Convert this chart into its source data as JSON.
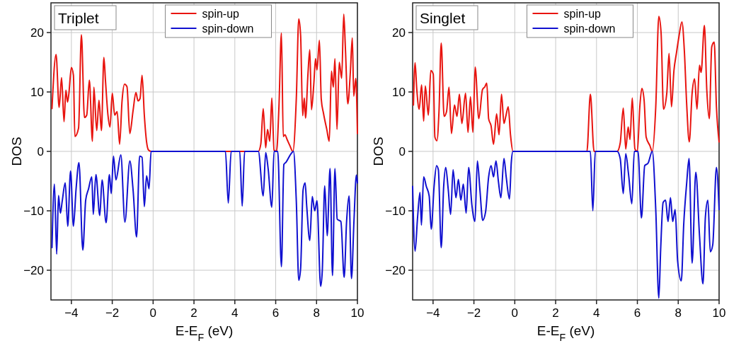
{
  "chart_data": [
    {
      "type": "line",
      "title": "Triplet",
      "xlabel": "E-E$_{F}$ (eV)",
      "ylabel": "DOS",
      "xlim": [
        -5,
        10
      ],
      "ylim": [
        -25,
        25
      ],
      "xticks": [
        -4,
        -2,
        0,
        2,
        4,
        6,
        8,
        10
      ],
      "yticks": [
        -20,
        -10,
        0,
        10,
        20
      ],
      "grid": true,
      "legend": "top",
      "series": [
        {
          "name": "spin-up",
          "color": "#e8140f",
          "x": [
            -4.95,
            -4.75,
            -4.6,
            -4.48,
            -4.36,
            -4.27,
            -4.19,
            -4.13,
            -4.0,
            -3.9,
            -3.83,
            -3.65,
            -3.51,
            -3.36,
            -3.25,
            -3.12,
            -2.97,
            -2.9,
            -2.76,
            -2.65,
            -2.53,
            -2.41,
            -2.33,
            -2.21,
            -2.11,
            -2.0,
            -1.88,
            -1.76,
            -1.64,
            -1.52,
            -1.4,
            -1.28,
            -1.14,
            -0.98,
            -0.84,
            -0.74,
            -0.64,
            -0.54,
            -0.43,
            -0.32,
            -0.22,
            -0.1,
            5.15,
            5.27,
            5.39,
            5.51,
            5.6,
            5.71,
            5.81,
            5.92,
            6.04,
            6.16,
            6.28,
            6.37,
            6.45,
            6.57,
            6.69,
            6.84,
            7.01,
            7.13,
            7.22,
            7.32,
            7.4,
            7.46,
            7.58,
            7.67,
            7.75,
            7.87,
            7.95,
            8.02,
            8.14,
            8.23,
            8.34,
            8.5,
            8.62,
            8.73,
            8.82,
            8.9,
            9.0,
            9.11,
            9.23,
            9.33,
            9.41,
            9.53,
            9.65,
            9.75,
            9.82,
            9.92,
            10
          ],
          "values": [
            7.2,
            16.3,
            7.4,
            12.4,
            5.0,
            10.3,
            8.3,
            9.5,
            14.1,
            12.8,
            2.5,
            3.9,
            19.6,
            5.7,
            6.1,
            12.0,
            1.7,
            10.8,
            3.5,
            8.6,
            3.5,
            15.8,
            11.8,
            6.1,
            4.1,
            9.8,
            6.1,
            6.7,
            1.2,
            8.5,
            11.3,
            10.9,
            3.0,
            6.9,
            9.9,
            8.5,
            8.9,
            12.8,
            6.1,
            1.6,
            0.2,
            0,
            0,
            1.2,
            7.2,
            0.6,
            3.7,
            1.7,
            9.0,
            0.2,
            0,
            7.6,
            19.9,
            2.5,
            2.8,
            1.9,
            1.0,
            0,
            9.0,
            22.3,
            19.5,
            6.0,
            9.0,
            5.6,
            13.1,
            17.1,
            7.0,
            11.6,
            15.6,
            13.7,
            18.7,
            8.8,
            6.4,
            3.7,
            1.7,
            13.5,
            10.8,
            15.6,
            3.7,
            15.0,
            12.3,
            23.1,
            17.5,
            8.0,
            13.1,
            19.1,
            9.3,
            12.3,
            3.0
          ]
        },
        {
          "name": "spin-down",
          "color": "#1010d0",
          "x": [
            -4.95,
            -4.83,
            -4.72,
            -4.63,
            -4.54,
            -4.45,
            -4.3,
            -4.18,
            -4.04,
            -3.9,
            -3.77,
            -3.63,
            -3.44,
            -3.3,
            -3.16,
            -3.0,
            -2.93,
            -2.8,
            -2.61,
            -2.5,
            -2.3,
            -2.14,
            -2.05,
            -1.94,
            -1.82,
            -1.58,
            -1.38,
            -1.14,
            -0.98,
            -0.81,
            -0.66,
            -0.54,
            -0.43,
            -0.32,
            -0.2,
            -0.1,
            3.54,
            3.68,
            3.82,
            4.24,
            4.36,
            4.48,
            5.15,
            5.39,
            5.51,
            5.63,
            5.81,
            5.92,
            6.1,
            6.28,
            6.4,
            6.51,
            6.75,
            6.87,
            7.01,
            7.13,
            7.22,
            7.34,
            7.44,
            7.52,
            7.67,
            7.79,
            7.91,
            8.02,
            8.2,
            8.28,
            8.4,
            8.52,
            8.66,
            8.78,
            8.9,
            9.01,
            9.19,
            9.35,
            9.47,
            9.59,
            9.71,
            9.83,
            9.95,
            10
          ],
          "values": [
            -16.2,
            -5.5,
            -17.3,
            -7.4,
            -10.4,
            -8.4,
            -5.3,
            -12.6,
            -3.3,
            -12.6,
            -6.3,
            -1.9,
            -16.6,
            -8.2,
            -6.3,
            -4.3,
            -10.6,
            -3.9,
            -10.8,
            -4.8,
            -12.0,
            -3.9,
            -7.1,
            -0.8,
            -4.8,
            -0.6,
            -11.9,
            -1.6,
            -6.5,
            -14.4,
            -0.8,
            -1.0,
            -9.3,
            -4.1,
            -6.3,
            0,
            0,
            -8.7,
            0,
            0,
            -9.2,
            0,
            0,
            -7.5,
            -0.2,
            -2.9,
            -9.4,
            0,
            0,
            -19.4,
            -2.2,
            -1.8,
            -0.4,
            0,
            -8.5,
            -21.7,
            -19.7,
            -6.5,
            -5.3,
            -9.3,
            -15.0,
            -7.6,
            -10.0,
            -8.3,
            -22.7,
            -20.1,
            -5.8,
            -14.2,
            -2.9,
            -20.9,
            -2.9,
            -11.4,
            -11.8,
            -21.2,
            -11.8,
            -7.5,
            -21.4,
            -11.8,
            -4.0,
            -5.3
          ]
        }
      ]
    },
    {
      "type": "line",
      "title": "Singlet",
      "xlabel": "E-E$_{F}$ (eV)",
      "ylabel": "DOS",
      "xlim": [
        -5,
        10
      ],
      "ylim": [
        -25,
        25
      ],
      "xticks": [
        -4,
        -2,
        0,
        2,
        4,
        6,
        8,
        10
      ],
      "yticks": [
        -20,
        -10,
        0,
        10,
        20
      ],
      "grid": true,
      "legend": "top",
      "series": [
        {
          "name": "spin-up",
          "color": "#e8140f",
          "x": [
            -4.96,
            -4.88,
            -4.8,
            -4.68,
            -4.56,
            -4.46,
            -4.38,
            -4.23,
            -4.11,
            -3.99,
            -3.91,
            -3.81,
            -3.71,
            -3.6,
            -3.46,
            -3.34,
            -3.22,
            -3.1,
            -2.95,
            -2.83,
            -2.71,
            -2.59,
            -2.41,
            -2.29,
            -2.17,
            -2.05,
            -1.94,
            -1.76,
            -1.58,
            -1.46,
            -1.37,
            -1.28,
            -1.16,
            -1.04,
            -0.89,
            -0.77,
            -0.65,
            -0.53,
            -0.44,
            -0.32,
            -0.21,
            -0.09,
            3.53,
            3.7,
            3.88,
            5.01,
            5.16,
            5.31,
            5.43,
            5.55,
            5.64,
            5.75,
            5.88,
            6.0,
            6.12,
            6.22,
            6.33,
            6.43,
            6.61,
            6.73,
            6.9,
            7.05,
            7.16,
            7.28,
            7.44,
            7.55,
            7.67,
            7.79,
            7.91,
            8.03,
            8.18,
            8.3,
            8.41,
            8.54,
            8.68,
            8.8,
            8.92,
            9.04,
            9.12,
            9.28,
            9.4,
            9.52,
            9.64,
            9.76,
            9.87,
            10
          ],
          "values": [
            7.8,
            14.9,
            10.6,
            7.1,
            11.2,
            5.1,
            11.0,
            6.1,
            13.6,
            13.0,
            2.4,
            1.8,
            6.7,
            18.2,
            5.9,
            6.7,
            10.8,
            3.0,
            7.8,
            5.9,
            9.6,
            4.7,
            9.8,
            3.2,
            9.2,
            3.2,
            14.2,
            5.5,
            10.4,
            10.9,
            11.5,
            5.5,
            4.3,
            1.2,
            6.3,
            2.8,
            9.6,
            4.7,
            5.9,
            7.5,
            2.8,
            0,
            0,
            9.6,
            0,
            0,
            1.4,
            7.3,
            0.4,
            4.1,
            2.0,
            9.0,
            0.4,
            0,
            7.5,
            10.6,
            8.6,
            2.4,
            1.0,
            0,
            7.5,
            22.7,
            20.0,
            7.1,
            9.8,
            16.5,
            7.5,
            13.6,
            16.5,
            19.2,
            21.8,
            16.9,
            8.2,
            1.6,
            9.8,
            12.2,
            7.1,
            14.5,
            13.3,
            21.2,
            10.2,
            5.5,
            17.6,
            18.4,
            7.5,
            1.6
          ]
        },
        {
          "name": "spin-down",
          "color": "#1010d0",
          "x": [
            -5.0,
            -4.88,
            -4.76,
            -4.64,
            -4.57,
            -4.46,
            -4.33,
            -4.19,
            -4.09,
            -3.95,
            -3.83,
            -3.74,
            -3.6,
            -3.48,
            -3.38,
            -3.26,
            -3.14,
            -3.02,
            -2.88,
            -2.76,
            -2.64,
            -2.52,
            -2.38,
            -2.26,
            -2.1,
            -1.95,
            -1.83,
            -1.71,
            -1.57,
            -1.43,
            -1.28,
            -1.16,
            -1.04,
            -0.92,
            -0.8,
            -0.68,
            -0.53,
            -0.42,
            -0.26,
            -0.17,
            -0.09,
            3.7,
            3.82,
            3.94,
            5.01,
            5.16,
            5.31,
            5.43,
            5.57,
            5.73,
            5.85,
            6.03,
            6.2,
            6.36,
            6.52,
            6.73,
            6.9,
            7.05,
            7.14,
            7.26,
            7.38,
            7.5,
            7.62,
            7.73,
            7.85,
            7.97,
            8.15,
            8.27,
            8.41,
            8.53,
            8.68,
            8.86,
            9.04,
            9.21,
            9.33,
            9.45,
            9.57,
            9.69,
            9.87,
            10
          ],
          "values": [
            -5.9,
            -16.8,
            -11.2,
            -6.9,
            -12.4,
            -4.3,
            -5.9,
            -7.5,
            -13.1,
            -5.9,
            -2.4,
            -3.1,
            -16.2,
            -5.9,
            -2.7,
            -6.3,
            -10.6,
            -3.1,
            -7.8,
            -4.7,
            -8.2,
            -5.5,
            -10.4,
            -2.7,
            -9.0,
            -11.8,
            -1.6,
            -6.3,
            -11.6,
            -10.2,
            -4.3,
            -2.4,
            -4.3,
            -1.6,
            -5.1,
            -7.8,
            -1.2,
            -4.3,
            -8.0,
            -1.8,
            0,
            0,
            -10.0,
            0,
            0,
            -1.2,
            -7.1,
            -0.4,
            -3.9,
            -8.8,
            0,
            0,
            -11.2,
            -2.4,
            -2.0,
            0,
            -9.8,
            -24.7,
            -16.5,
            -8.6,
            -8.2,
            -11.8,
            -7.8,
            -11.8,
            -9.8,
            -18.4,
            -21.8,
            -12.2,
            -5.5,
            -1.2,
            -18.8,
            -3.5,
            -14.1,
            -22.3,
            -11.0,
            -8.2,
            -16.9,
            -15.7,
            -2.7,
            -9.8
          ]
        }
      ]
    }
  ]
}
